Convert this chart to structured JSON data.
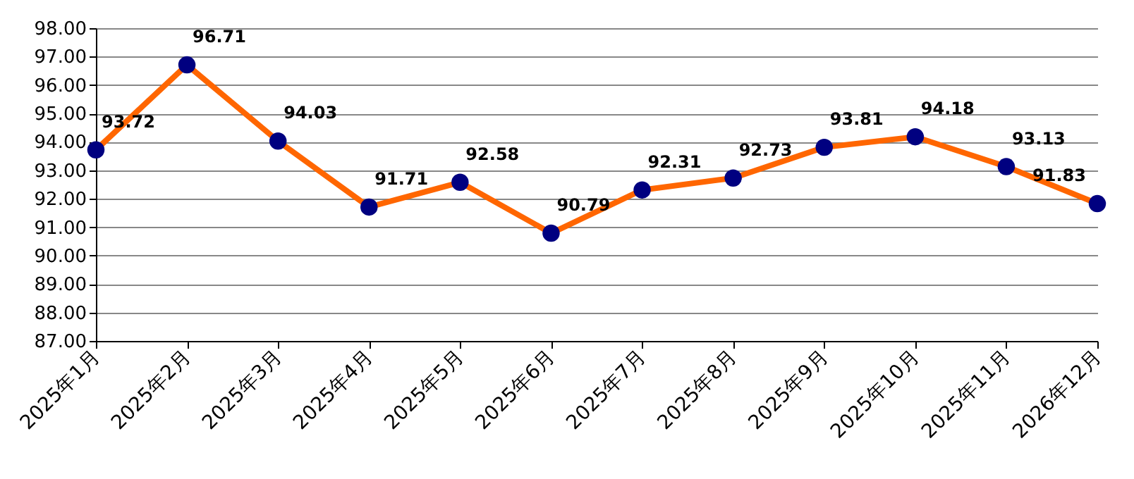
{
  "chart_data": {
    "type": "line",
    "categories": [
      "2025年1月",
      "2025年2月",
      "2025年3月",
      "2025年4月",
      "2025年5月",
      "2025年6月",
      "2025年7月",
      "2025年8月",
      "2025年9月",
      "2025年10月",
      "2025年11月",
      "2026年12月"
    ],
    "series": [
      {
        "color": "#ff6600",
        "colors": [
          "#000080",
          "#000080",
          "#000080",
          "#000080",
          "#000080",
          "#000080",
          "#000080",
          "#000080",
          "#000080",
          "#000080",
          "#000080",
          "#000080"
        ],
        "values": [
          93.72,
          96.71,
          94.03,
          91.71,
          92.58,
          90.79,
          92.31,
          92.73,
          93.81,
          94.18,
          93.13,
          91.83
        ]
      }
    ],
    "ylim": [
      87,
      98
    ],
    "yticks": [
      {
        "value": 87,
        "label": "87.00"
      },
      {
        "value": 88,
        "label": "88.00"
      },
      {
        "value": 89,
        "label": "89.00"
      },
      {
        "value": 90,
        "label": "90.00"
      },
      {
        "value": 91,
        "label": "91.00"
      },
      {
        "value": 92,
        "label": "92.00"
      },
      {
        "value": 93,
        "label": "93.00"
      },
      {
        "value": 94,
        "label": "94.00"
      },
      {
        "value": 95,
        "label": "95.00"
      },
      {
        "value": 96,
        "label": "96.00"
      },
      {
        "value": 97,
        "label": "97.00"
      },
      {
        "value": 98,
        "label": "98.00"
      }
    ],
    "grid": "y",
    "marker": "circle",
    "line_style": "solid",
    "data_labels": true
  }
}
